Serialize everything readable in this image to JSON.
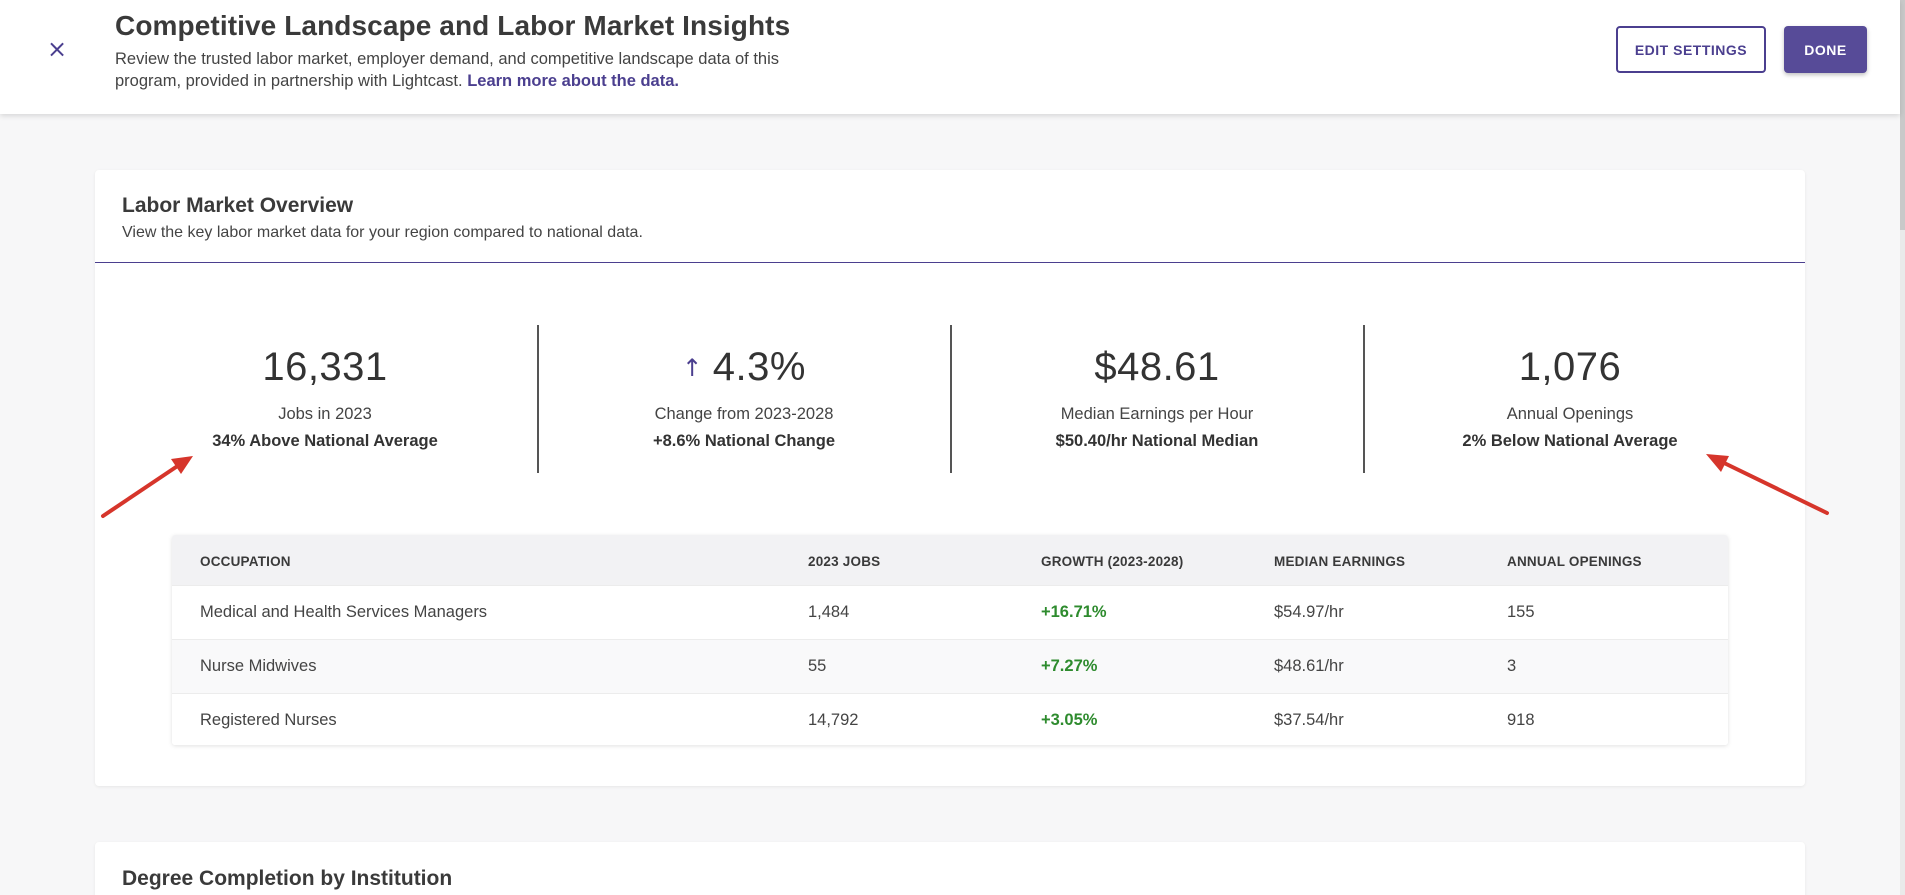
{
  "header": {
    "title": "Competitive Landscape and Labor Market Insights",
    "subtitle_text": "Review the trusted labor market, employer demand, and competitive landscape data of this program, provided in partnership with Lightcast.",
    "learn_more_link": "Learn more about the data.",
    "close_symbol": "×",
    "edit_settings_label": "EDIT SETTINGS",
    "done_label": "DONE"
  },
  "overview": {
    "title": "Labor Market Overview",
    "subtitle": "View the key labor market data for your region compared to national data.",
    "stats": [
      {
        "value": "16,331",
        "label": "Jobs in 2023",
        "note": "34% Above National Average"
      },
      {
        "arrow": "↑",
        "value": "4.3%",
        "label": "Change from 2023-2028",
        "note": "+8.6% National Change"
      },
      {
        "value": "$48.61",
        "label": "Median Earnings per Hour",
        "note": "$50.40/hr National Median"
      },
      {
        "value": "1,076",
        "label": "Annual Openings",
        "note": "2% Below National Average"
      }
    ]
  },
  "occupations_table": {
    "headers": [
      "OCCUPATION",
      "2023 JOBS",
      "GROWTH (2023-2028)",
      "MEDIAN EARNINGS",
      "ANNUAL OPENINGS"
    ],
    "rows": [
      [
        "Medical and Health Services Managers",
        "1,484",
        "+16.71%",
        "$54.97/hr",
        "155"
      ],
      [
        "Nurse Midwives",
        "55",
        "+7.27%",
        "$48.61/hr",
        "3"
      ],
      [
        "Registered Nurses",
        "14,792",
        "+3.05%",
        "$37.54/hr",
        "918"
      ]
    ]
  },
  "next_section": {
    "title": "Degree Completion by Institution"
  },
  "colors": {
    "accent": "#4b3f8f",
    "done_button": "#574b98",
    "growth_positive": "#2e8b2e",
    "annotation_arrow": "#d6352b"
  }
}
